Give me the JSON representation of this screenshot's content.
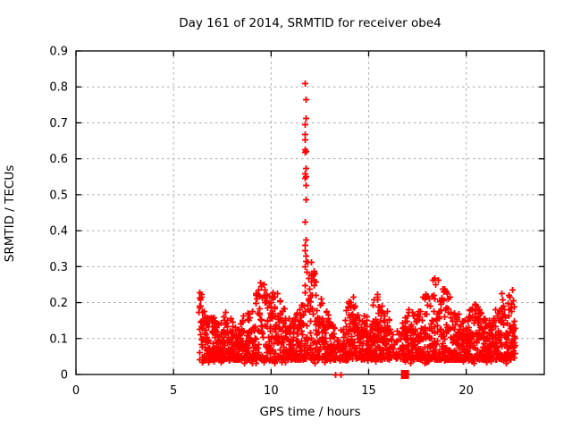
{
  "chart_data": {
    "type": "scatter",
    "title": "Day 161 of 2014, SRMTID for receiver obe4",
    "xlabel": "GPS time / hours",
    "ylabel": "SRMTID / TECUs",
    "xlim": [
      0,
      24
    ],
    "ylim": [
      0,
      0.9
    ],
    "xticks": [
      {
        "v": 0,
        "label": "0"
      },
      {
        "v": 5,
        "label": "5"
      },
      {
        "v": 10,
        "label": "10"
      },
      {
        "v": 15,
        "label": "15"
      },
      {
        "v": 20,
        "label": "20"
      }
    ],
    "yticks": [
      {
        "v": 0,
        "label": "0"
      },
      {
        "v": 0.1,
        "label": "0.1"
      },
      {
        "v": 0.2,
        "label": "0.2"
      },
      {
        "v": 0.3,
        "label": "0.3"
      },
      {
        "v": 0.4,
        "label": "0.4"
      },
      {
        "v": 0.5,
        "label": "0.5"
      },
      {
        "v": 0.6,
        "label": "0.6"
      },
      {
        "v": 0.7,
        "label": "0.7"
      },
      {
        "v": 0.8,
        "label": "0.8"
      },
      {
        "v": 0.9,
        "label": "0.9"
      }
    ],
    "grid": true,
    "grid_color": "#a8a8a8",
    "border_color": "#000000",
    "marker": {
      "glyph": "plus",
      "color": "#ff0000",
      "size": 7
    },
    "legend": "none",
    "series": [
      {
        "name": "SRMTID cloud",
        "type": "generated-cloud",
        "seed": 161,
        "x_start": 6.3,
        "x_end": 22.5,
        "x_step": 0.025,
        "points_per_step": 3,
        "y_base": 0.042,
        "envelope": [
          [
            6.3,
            0.25
          ],
          [
            6.45,
            0.22
          ],
          [
            6.7,
            0.17
          ],
          [
            7.0,
            0.17
          ],
          [
            7.3,
            0.14
          ],
          [
            7.6,
            0.18
          ],
          [
            7.9,
            0.16
          ],
          [
            8.2,
            0.13
          ],
          [
            8.5,
            0.15
          ],
          [
            8.8,
            0.2
          ],
          [
            9.1,
            0.22
          ],
          [
            9.4,
            0.28
          ],
          [
            9.7,
            0.24
          ],
          [
            10.0,
            0.22
          ],
          [
            10.2,
            0.26
          ],
          [
            10.5,
            0.22
          ],
          [
            10.8,
            0.16
          ],
          [
            11.1,
            0.16
          ],
          [
            11.4,
            0.18
          ],
          [
            11.6,
            0.22
          ],
          [
            11.75,
            0.35
          ],
          [
            11.9,
            0.3
          ],
          [
            12.1,
            0.33
          ],
          [
            12.3,
            0.25
          ],
          [
            12.5,
            0.22
          ],
          [
            12.8,
            0.2
          ],
          [
            13.1,
            0.16
          ],
          [
            13.4,
            0.1
          ],
          [
            13.6,
            0.13
          ],
          [
            13.9,
            0.2
          ],
          [
            14.2,
            0.23
          ],
          [
            14.5,
            0.18
          ],
          [
            14.8,
            0.16
          ],
          [
            15.1,
            0.18
          ],
          [
            15.4,
            0.23
          ],
          [
            15.7,
            0.2
          ],
          [
            16.0,
            0.18
          ],
          [
            16.3,
            0.13
          ],
          [
            16.6,
            0.12
          ],
          [
            16.9,
            0.17
          ],
          [
            17.2,
            0.2
          ],
          [
            17.5,
            0.18
          ],
          [
            17.8,
            0.22
          ],
          [
            18.1,
            0.24
          ],
          [
            18.4,
            0.28
          ],
          [
            18.7,
            0.26
          ],
          [
            19.0,
            0.25
          ],
          [
            19.3,
            0.22
          ],
          [
            19.6,
            0.17
          ],
          [
            19.9,
            0.16
          ],
          [
            20.2,
            0.19
          ],
          [
            20.5,
            0.2
          ],
          [
            20.8,
            0.17
          ],
          [
            21.1,
            0.15
          ],
          [
            21.4,
            0.18
          ],
          [
            21.7,
            0.22
          ],
          [
            22.0,
            0.24
          ],
          [
            22.3,
            0.25
          ],
          [
            22.5,
            0.2
          ]
        ],
        "density_dips": [
          {
            "x0": 13.25,
            "x1": 13.65,
            "f": 0.45
          },
          {
            "x0": 16.15,
            "x1": 16.7,
            "f": 0.5
          }
        ]
      },
      {
        "name": "noon spike",
        "type": "points",
        "points": [
          [
            11.74,
            0.81
          ],
          [
            11.75,
            0.765
          ],
          [
            11.76,
            0.714
          ],
          [
            11.74,
            0.695
          ],
          [
            11.73,
            0.668
          ],
          [
            11.72,
            0.655
          ],
          [
            11.74,
            0.627
          ],
          [
            11.75,
            0.622
          ],
          [
            11.73,
            0.618
          ],
          [
            11.76,
            0.575
          ],
          [
            11.74,
            0.56
          ],
          [
            11.77,
            0.553
          ],
          [
            11.73,
            0.547
          ],
          [
            11.75,
            0.528
          ],
          [
            11.75,
            0.488
          ],
          [
            11.71,
            0.425
          ],
          [
            11.76,
            0.375
          ],
          [
            11.74,
            0.36
          ],
          [
            11.72,
            0.345
          ],
          [
            11.78,
            0.33
          ],
          [
            11.75,
            0.315
          ],
          [
            11.73,
            0.3
          ]
        ]
      },
      {
        "name": "zero outliers",
        "type": "points",
        "points": [
          [
            13.3,
            0
          ],
          [
            13.55,
            0
          ]
        ]
      },
      {
        "name": "zero block",
        "type": "square",
        "x": 16.86,
        "y": 0
      }
    ]
  }
}
